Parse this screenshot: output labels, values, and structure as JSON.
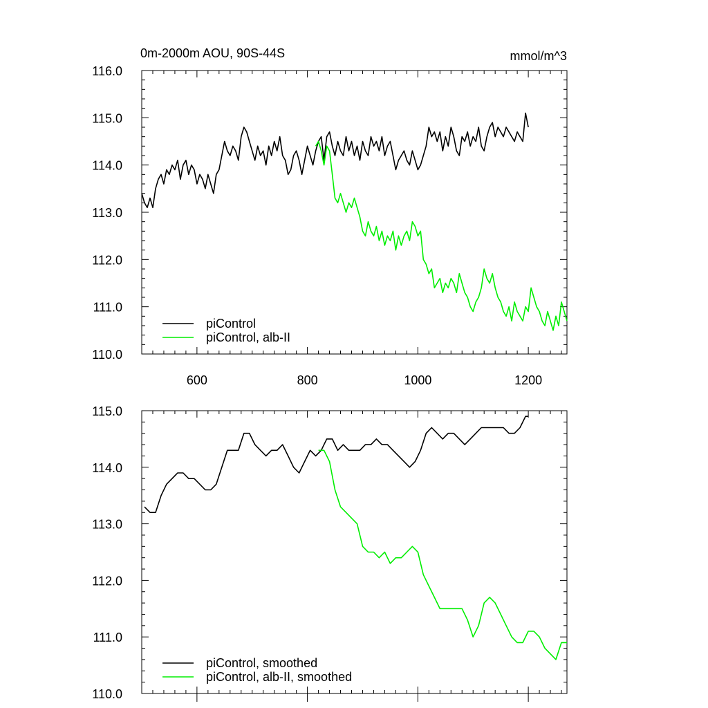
{
  "chart_data": [
    {
      "type": "line",
      "title": "0m-2000m AOU, 90S-44S",
      "units": "mmol/m^3",
      "xlim": [
        500,
        1270
      ],
      "ylim": [
        110,
        116
      ],
      "x_ticks": [
        600,
        800,
        1000,
        1200
      ],
      "x_tick_labels": [
        "600",
        "800",
        "1000",
        "1200"
      ],
      "y_ticks": [
        110,
        111,
        112,
        113,
        114,
        115,
        116
      ],
      "y_tick_labels": [
        "110.0",
        "111.0",
        "112.0",
        "113.0",
        "114.0",
        "115.0",
        "116.0"
      ],
      "legend_position": "bottom-left",
      "grid": false,
      "series": [
        {
          "name": "piControl",
          "color": "#000000",
          "x": [
            500,
            505,
            510,
            515,
            520,
            525,
            530,
            535,
            540,
            545,
            550,
            555,
            560,
            565,
            570,
            575,
            580,
            585,
            590,
            595,
            600,
            605,
            610,
            615,
            620,
            625,
            630,
            635,
            640,
            645,
            650,
            655,
            660,
            665,
            670,
            675,
            680,
            685,
            690,
            695,
            700,
            705,
            710,
            715,
            720,
            725,
            730,
            735,
            740,
            745,
            750,
            755,
            760,
            765,
            770,
            775,
            780,
            785,
            790,
            795,
            800,
            805,
            810,
            815,
            820,
            825,
            830,
            835,
            840,
            845,
            850,
            855,
            860,
            865,
            870,
            875,
            880,
            885,
            890,
            895,
            900,
            905,
            910,
            915,
            920,
            925,
            930,
            935,
            940,
            945,
            950,
            955,
            960,
            965,
            970,
            975,
            980,
            985,
            990,
            995,
            1000,
            1005,
            1010,
            1015,
            1020,
            1025,
            1030,
            1035,
            1040,
            1045,
            1050,
            1055,
            1060,
            1065,
            1070,
            1075,
            1080,
            1085,
            1090,
            1095,
            1100,
            1105,
            1110,
            1115,
            1120,
            1125,
            1130,
            1135,
            1140,
            1145,
            1150,
            1155,
            1160,
            1165,
            1170,
            1175,
            1180,
            1185,
            1190,
            1195,
            1200
          ],
          "values": [
            113.4,
            113.2,
            113.1,
            113.3,
            113.1,
            113.5,
            113.7,
            113.8,
            113.6,
            113.9,
            113.8,
            114.0,
            113.9,
            114.1,
            113.7,
            114.0,
            114.1,
            113.8,
            114.0,
            113.9,
            113.6,
            113.8,
            113.7,
            113.5,
            113.8,
            113.6,
            113.4,
            113.8,
            113.9,
            114.2,
            114.5,
            114.3,
            114.2,
            114.4,
            114.3,
            114.1,
            114.6,
            114.8,
            114.7,
            114.5,
            114.3,
            114.1,
            114.4,
            114.2,
            114.3,
            114.0,
            114.4,
            114.2,
            114.5,
            114.3,
            114.6,
            114.2,
            114.1,
            113.8,
            113.9,
            114.2,
            114.3,
            114.1,
            113.8,
            114.1,
            114.4,
            114.2,
            114.0,
            114.3,
            114.5,
            114.6,
            114.1,
            114.6,
            114.7,
            114.4,
            114.2,
            114.5,
            114.3,
            114.2,
            114.6,
            114.3,
            114.5,
            114.2,
            114.4,
            114.1,
            114.5,
            114.3,
            114.2,
            114.6,
            114.4,
            114.5,
            114.3,
            114.6,
            114.2,
            114.4,
            114.5,
            114.2,
            113.9,
            114.1,
            114.2,
            114.3,
            114.1,
            114.0,
            114.3,
            114.1,
            113.9,
            114.0,
            114.2,
            114.4,
            114.8,
            114.6,
            114.7,
            114.5,
            114.7,
            114.3,
            114.6,
            114.4,
            114.8,
            114.6,
            114.3,
            114.2,
            114.6,
            114.5,
            114.7,
            114.4,
            114.6,
            114.5,
            114.8,
            114.4,
            114.3,
            114.6,
            114.8,
            114.9,
            114.6,
            114.8,
            114.7,
            114.6,
            114.8,
            114.7,
            114.6,
            114.5,
            114.7,
            114.6,
            114.5,
            115.1,
            114.8
          ],
          "legend": "piControl"
        },
        {
          "name": "piControl, alb-II",
          "color": "#00ee00",
          "x": [
            815,
            820,
            825,
            830,
            835,
            840,
            845,
            850,
            855,
            860,
            865,
            870,
            875,
            880,
            885,
            890,
            895,
            900,
            905,
            910,
            915,
            920,
            925,
            930,
            935,
            940,
            945,
            950,
            955,
            960,
            965,
            970,
            975,
            980,
            985,
            990,
            995,
            1000,
            1005,
            1010,
            1015,
            1020,
            1025,
            1030,
            1035,
            1040,
            1045,
            1050,
            1055,
            1060,
            1065,
            1070,
            1075,
            1080,
            1085,
            1090,
            1095,
            1100,
            1105,
            1110,
            1115,
            1120,
            1125,
            1130,
            1135,
            1140,
            1145,
            1150,
            1155,
            1160,
            1165,
            1170,
            1175,
            1180,
            1185,
            1190,
            1195,
            1200,
            1205,
            1210,
            1215,
            1220,
            1225,
            1230,
            1235,
            1240,
            1245,
            1250,
            1255,
            1260,
            1265,
            1270
          ],
          "values": [
            114.4,
            114.5,
            114.3,
            114.0,
            114.4,
            114.3,
            113.8,
            113.3,
            113.2,
            113.4,
            113.2,
            113.0,
            113.2,
            113.1,
            113.3,
            113.1,
            112.9,
            112.6,
            112.5,
            112.8,
            112.6,
            112.5,
            112.7,
            112.4,
            112.6,
            112.3,
            112.5,
            112.4,
            112.6,
            112.2,
            112.5,
            112.3,
            112.5,
            112.6,
            112.4,
            112.8,
            112.7,
            112.5,
            112.6,
            112.0,
            111.9,
            111.7,
            111.8,
            111.4,
            111.5,
            111.6,
            111.3,
            111.5,
            111.4,
            111.6,
            111.5,
            111.3,
            111.7,
            111.5,
            111.3,
            111.2,
            111.0,
            110.9,
            111.1,
            111.2,
            111.4,
            111.8,
            111.6,
            111.5,
            111.7,
            111.4,
            111.2,
            111.1,
            110.9,
            110.8,
            111.0,
            110.7,
            111.1,
            110.9,
            110.8,
            110.7,
            111.0,
            110.9,
            111.4,
            111.2,
            111.0,
            110.9,
            110.7,
            110.6,
            110.9,
            110.7,
            110.5,
            110.8,
            110.6,
            111.1,
            110.9,
            110.7
          ],
          "legend": "piControl, alb-II"
        }
      ]
    },
    {
      "type": "line",
      "xlim": [
        500,
        1270
      ],
      "ylim": [
        110,
        115
      ],
      "x_ticks": [
        600,
        800,
        1000,
        1200
      ],
      "y_ticks": [
        110,
        111,
        112,
        113,
        114,
        115
      ],
      "y_tick_labels": [
        "110.0",
        "111.0",
        "112.0",
        "113.0",
        "114.0",
        "115.0"
      ],
      "legend_position": "bottom-left",
      "grid": false,
      "series": [
        {
          "name": "piControl, smoothed",
          "color": "#000000",
          "x": [
            505,
            515,
            525,
            535,
            545,
            555,
            565,
            575,
            585,
            595,
            605,
            615,
            625,
            635,
            645,
            655,
            665,
            675,
            685,
            695,
            705,
            715,
            725,
            735,
            745,
            755,
            765,
            775,
            785,
            795,
            805,
            815,
            825,
            835,
            845,
            855,
            865,
            875,
            885,
            895,
            905,
            915,
            925,
            935,
            945,
            955,
            965,
            975,
            985,
            995,
            1005,
            1015,
            1025,
            1035,
            1045,
            1055,
            1065,
            1075,
            1085,
            1095,
            1105,
            1115,
            1125,
            1135,
            1145,
            1155,
            1165,
            1175,
            1185,
            1195,
            1200
          ],
          "values": [
            113.3,
            113.2,
            113.2,
            113.5,
            113.7,
            113.8,
            113.9,
            113.9,
            113.8,
            113.8,
            113.7,
            113.6,
            113.6,
            113.7,
            114.0,
            114.3,
            114.3,
            114.3,
            114.6,
            114.6,
            114.4,
            114.3,
            114.2,
            114.3,
            114.3,
            114.4,
            114.2,
            114.0,
            113.9,
            114.1,
            114.3,
            114.2,
            114.3,
            114.5,
            114.5,
            114.3,
            114.4,
            114.3,
            114.3,
            114.3,
            114.4,
            114.4,
            114.5,
            114.4,
            114.4,
            114.3,
            114.2,
            114.1,
            114.0,
            114.1,
            114.3,
            114.6,
            114.7,
            114.6,
            114.5,
            114.6,
            114.6,
            114.5,
            114.4,
            114.5,
            114.6,
            114.7,
            114.7,
            114.7,
            114.7,
            114.7,
            114.6,
            114.6,
            114.7,
            114.9,
            114.9
          ],
          "legend": "piControl, smoothed"
        },
        {
          "name": "piControl, alb-II, smoothed",
          "color": "#00ee00",
          "x": [
            820,
            830,
            840,
            850,
            860,
            870,
            880,
            890,
            900,
            910,
            920,
            930,
            940,
            950,
            960,
            970,
            980,
            990,
            1000,
            1010,
            1020,
            1030,
            1040,
            1050,
            1060,
            1070,
            1080,
            1090,
            1100,
            1110,
            1120,
            1130,
            1140,
            1150,
            1160,
            1170,
            1180,
            1190,
            1200,
            1210,
            1220,
            1230,
            1240,
            1250,
            1260,
            1270
          ],
          "values": [
            114.3,
            114.3,
            114.1,
            113.6,
            113.3,
            113.2,
            113.1,
            113.0,
            112.6,
            112.5,
            112.5,
            112.4,
            112.5,
            112.3,
            112.4,
            112.4,
            112.5,
            112.6,
            112.5,
            112.1,
            111.9,
            111.7,
            111.5,
            111.5,
            111.5,
            111.5,
            111.5,
            111.3,
            111.0,
            111.2,
            111.6,
            111.7,
            111.6,
            111.4,
            111.2,
            111.0,
            110.9,
            110.9,
            111.1,
            111.1,
            111.0,
            110.8,
            110.7,
            110.6,
            110.9,
            110.9
          ],
          "legend": "piControl, alb-II, smoothed"
        }
      ]
    }
  ]
}
